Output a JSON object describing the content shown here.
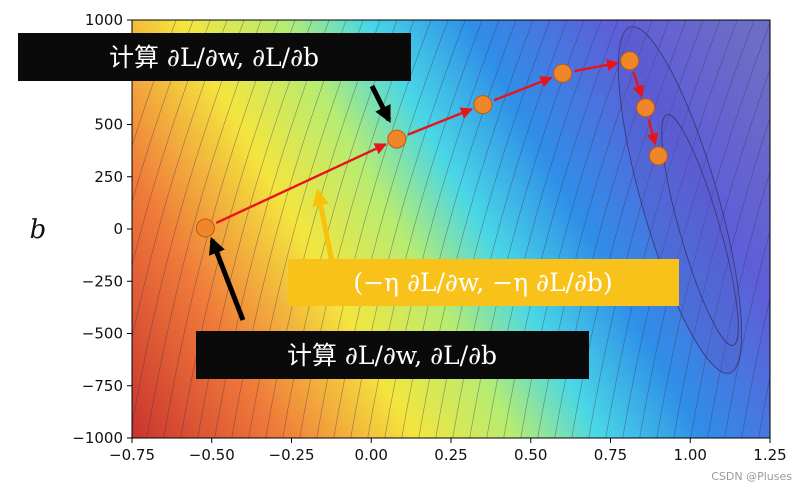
{
  "chart_data": {
    "type": "scatter",
    "xlim": [
      -0.75,
      1.25
    ],
    "ylim": [
      -1000,
      1000
    ],
    "x_ticks": [
      -0.75,
      -0.5,
      -0.25,
      0.0,
      0.25,
      0.5,
      0.75,
      1.0,
      1.25
    ],
    "x_tick_labels": [
      "−0.75",
      "−0.50",
      "−0.25",
      "0.00",
      "0.25",
      "0.50",
      "0.75",
      "1.00",
      "1.25"
    ],
    "y_ticks": [
      1000,
      750,
      500,
      250,
      0,
      -250,
      -500,
      -750,
      -1000
    ],
    "y_tick_labels": [
      "1000",
      "750",
      "500",
      "250",
      "0",
      "−250",
      "−500",
      "−750",
      "−1000"
    ],
    "ylabel": "b",
    "background": "contour map of the loss L(w, b), colored from red (high) through yellow and cyan to blue (low)",
    "points": [
      {
        "x": -0.52,
        "y": 5
      },
      {
        "x": 0.08,
        "y": 430
      },
      {
        "x": 0.35,
        "y": 595
      },
      {
        "x": 0.6,
        "y": 745
      },
      {
        "x": 0.81,
        "y": 805
      },
      {
        "x": 0.86,
        "y": 580
      },
      {
        "x": 0.9,
        "y": 350
      }
    ],
    "arrow_color": "#e8141b",
    "point_color": "#f0862a"
  },
  "annotations": {
    "top_box": "计算 ∂L/∂w, ∂L/∂b",
    "bottom_box": "计算 ∂L/∂w, ∂L/∂b",
    "update_box": "(−η ∂L/∂w, −η ∂L/∂b)"
  },
  "watermark": "CSDN @Pluses"
}
